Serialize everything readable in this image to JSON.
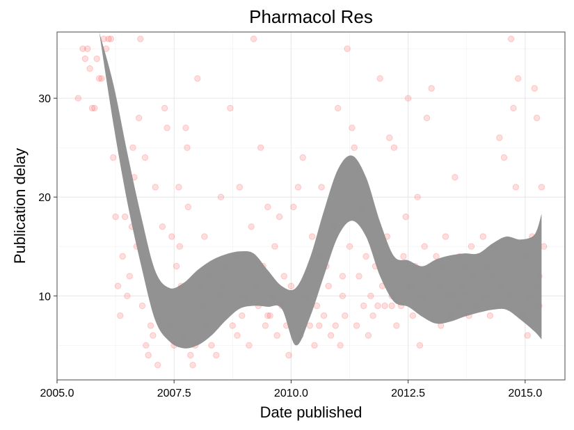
{
  "chart_data": {
    "type": "scatter",
    "title": "Pharmacol Res",
    "xlabel": "Date published",
    "ylabel": "Publication delay",
    "xlim": [
      2005.0,
      2015.85
    ],
    "ylim": [
      1.5,
      36.7
    ],
    "x_ticks": [
      2005.0,
      2007.5,
      2010.0,
      2012.5,
      2015.0
    ],
    "x_tick_labels": [
      "2005.0",
      "2007.5",
      "2010.0",
      "2012.5",
      "2015.0"
    ],
    "y_ticks": [
      10,
      20,
      30
    ],
    "y_tick_labels": [
      "10",
      "20",
      "30"
    ],
    "grid": true,
    "legend": "none",
    "point_color": "#ff2222",
    "point_alpha": 0.15,
    "band_color": "#8c8c8c",
    "series": [
      {
        "values": [
          [
            2005.45,
            30
          ],
          [
            2005.55,
            35
          ],
          [
            2005.6,
            34
          ],
          [
            2005.65,
            35
          ],
          [
            2005.7,
            33
          ],
          [
            2005.75,
            29
          ],
          [
            2005.8,
            29
          ],
          [
            2005.85,
            34
          ],
          [
            2005.9,
            32
          ],
          [
            2005.95,
            32
          ],
          [
            2006.0,
            36
          ],
          [
            2006.05,
            35
          ],
          [
            2006.1,
            36
          ],
          [
            2006.15,
            36
          ],
          [
            2006.2,
            24
          ],
          [
            2006.25,
            18
          ],
          [
            2006.3,
            11
          ],
          [
            2006.35,
            8
          ],
          [
            2006.4,
            14
          ],
          [
            2006.45,
            18
          ],
          [
            2006.5,
            10
          ],
          [
            2006.55,
            12
          ],
          [
            2006.6,
            17
          ],
          [
            2006.62,
            25
          ],
          [
            2006.65,
            22
          ],
          [
            2006.7,
            15
          ],
          [
            2006.75,
            28
          ],
          [
            2006.78,
            36
          ],
          [
            2006.82,
            9
          ],
          [
            2006.88,
            24
          ],
          [
            2006.9,
            5
          ],
          [
            2006.95,
            4
          ],
          [
            2007.0,
            7
          ],
          [
            2007.05,
            6
          ],
          [
            2007.1,
            21
          ],
          [
            2007.15,
            3
          ],
          [
            2007.2,
            8
          ],
          [
            2007.25,
            17
          ],
          [
            2007.3,
            29
          ],
          [
            2007.35,
            27
          ],
          [
            2007.4,
            7
          ],
          [
            2007.45,
            16
          ],
          [
            2007.5,
            5
          ],
          [
            2007.55,
            13
          ],
          [
            2007.6,
            21
          ],
          [
            2007.62,
            15
          ],
          [
            2007.65,
            11
          ],
          [
            2007.7,
            6
          ],
          [
            2007.75,
            27
          ],
          [
            2007.78,
            25
          ],
          [
            2007.8,
            19
          ],
          [
            2007.85,
            4
          ],
          [
            2007.9,
            3
          ],
          [
            2007.95,
            5
          ],
          [
            2008.0,
            32
          ],
          [
            2008.05,
            11
          ],
          [
            2008.1,
            9
          ],
          [
            2008.15,
            16
          ],
          [
            2008.2,
            7
          ],
          [
            2008.25,
            12
          ],
          [
            2008.3,
            5
          ],
          [
            2008.35,
            8
          ],
          [
            2008.4,
            4
          ],
          [
            2008.45,
            10
          ],
          [
            2008.5,
            20
          ],
          [
            2008.55,
            11
          ],
          [
            2008.6,
            13
          ],
          [
            2008.65,
            9
          ],
          [
            2008.7,
            29
          ],
          [
            2008.75,
            7
          ],
          [
            2008.8,
            14
          ],
          [
            2008.85,
            6
          ],
          [
            2008.9,
            21
          ],
          [
            2008.95,
            8
          ],
          [
            2009.0,
            10
          ],
          [
            2009.05,
            12
          ],
          [
            2009.1,
            5
          ],
          [
            2009.15,
            17
          ],
          [
            2009.2,
            36
          ],
          [
            2009.25,
            11
          ],
          [
            2009.3,
            9
          ],
          [
            2009.35,
            25
          ],
          [
            2009.4,
            13
          ],
          [
            2009.45,
            7
          ],
          [
            2009.5,
            19
          ],
          [
            2009.55,
            8
          ],
          [
            2009.6,
            10
          ],
          [
            2009.65,
            15
          ],
          [
            2009.7,
            6
          ],
          [
            2009.75,
            18
          ],
          [
            2009.8,
            9
          ],
          [
            2009.85,
            12
          ],
          [
            2009.9,
            7
          ],
          [
            2009.95,
            4
          ],
          [
            2010.0,
            11
          ],
          [
            2010.05,
            19
          ],
          [
            2010.1,
            8
          ],
          [
            2010.15,
            21
          ],
          [
            2010.2,
            6
          ],
          [
            2010.25,
            24
          ],
          [
            2010.3,
            10
          ],
          [
            2010.35,
            12
          ],
          [
            2010.4,
            7
          ],
          [
            2010.45,
            16
          ],
          [
            2010.5,
            5
          ],
          [
            2010.55,
            9
          ],
          [
            2010.6,
            14
          ],
          [
            2010.65,
            21
          ],
          [
            2010.7,
            8
          ],
          [
            2010.75,
            13
          ],
          [
            2010.8,
            11
          ],
          [
            2010.85,
            6
          ],
          [
            2010.9,
            17
          ],
          [
            2010.95,
            7
          ],
          [
            2011.0,
            29
          ],
          [
            2011.05,
            5
          ],
          [
            2011.1,
            10
          ],
          [
            2011.15,
            8
          ],
          [
            2011.2,
            35
          ],
          [
            2011.25,
            15
          ],
          [
            2011.3,
            27
          ],
          [
            2011.35,
            25
          ],
          [
            2011.4,
            7
          ],
          [
            2011.45,
            12
          ],
          [
            2011.5,
            19
          ],
          [
            2011.55,
            9
          ],
          [
            2011.6,
            14
          ],
          [
            2011.65,
            6
          ],
          [
            2011.7,
            10
          ],
          [
            2011.75,
            8
          ],
          [
            2011.8,
            13
          ],
          [
            2011.85,
            9
          ],
          [
            2011.9,
            32
          ],
          [
            2011.95,
            11
          ],
          [
            2012.0,
            9
          ],
          [
            2012.05,
            16
          ],
          [
            2012.1,
            26
          ],
          [
            2012.15,
            10
          ],
          [
            2012.2,
            25
          ],
          [
            2012.25,
            7
          ],
          [
            2012.3,
            12
          ],
          [
            2012.35,
            9
          ],
          [
            2012.4,
            14
          ],
          [
            2012.45,
            18
          ],
          [
            2012.5,
            30
          ],
          [
            2012.55,
            11
          ],
          [
            2012.6,
            8
          ],
          [
            2012.65,
            13
          ],
          [
            2012.7,
            20
          ],
          [
            2012.75,
            5
          ],
          [
            2012.8,
            10
          ],
          [
            2012.85,
            15
          ],
          [
            2012.9,
            28
          ],
          [
            2012.95,
            12
          ],
          [
            2013.0,
            31
          ],
          [
            2013.05,
            9
          ],
          [
            2013.1,
            14
          ],
          [
            2013.15,
            11
          ],
          [
            2013.2,
            7
          ],
          [
            2013.25,
            13
          ],
          [
            2013.3,
            16
          ],
          [
            2013.35,
            10
          ],
          [
            2013.4,
            8
          ],
          [
            2013.45,
            12
          ],
          [
            2013.5,
            22
          ],
          [
            2013.55,
            9
          ],
          [
            2013.6,
            14
          ],
          [
            2013.65,
            11
          ],
          [
            2013.7,
            13
          ],
          [
            2013.75,
            10
          ],
          [
            2013.8,
            8
          ],
          [
            2013.85,
            15
          ],
          [
            2013.9,
            12
          ],
          [
            2013.95,
            9
          ],
          [
            2014.0,
            14
          ],
          [
            2014.05,
            11
          ],
          [
            2014.1,
            16
          ],
          [
            2014.15,
            10
          ],
          [
            2014.2,
            13
          ],
          [
            2014.25,
            8
          ],
          [
            2014.3,
            12
          ],
          [
            2014.35,
            15
          ],
          [
            2014.4,
            9
          ],
          [
            2014.45,
            26
          ],
          [
            2014.5,
            11
          ],
          [
            2014.55,
            24
          ],
          [
            2014.6,
            14
          ],
          [
            2014.65,
            10
          ],
          [
            2014.7,
            36
          ],
          [
            2014.75,
            29
          ],
          [
            2014.8,
            21
          ],
          [
            2014.85,
            32
          ],
          [
            2014.9,
            12
          ],
          [
            2014.95,
            8
          ],
          [
            2015.0,
            14
          ],
          [
            2015.05,
            6
          ],
          [
            2015.1,
            10
          ],
          [
            2015.15,
            16
          ],
          [
            2015.2,
            31
          ],
          [
            2015.25,
            28
          ],
          [
            2015.3,
            12
          ],
          [
            2015.35,
            21
          ],
          [
            2015.4,
            15
          ],
          [
            2015.3,
            9
          ],
          [
            2015.25,
            11
          ],
          [
            2010.6,
            7
          ],
          [
            2011.1,
            12
          ],
          [
            2012.15,
            9
          ],
          [
            2013.5,
            10
          ],
          [
            2009.5,
            8
          ]
        ]
      }
    ],
    "smooth_band": {
      "x": [
        2005.9,
        2006.2,
        2006.5,
        2006.8,
        2007.1,
        2007.4,
        2007.7,
        2008.0,
        2008.3,
        2008.6,
        2008.9,
        2009.2,
        2009.5,
        2009.8,
        2010.1,
        2010.4,
        2010.7,
        2011.0,
        2011.3,
        2011.6,
        2011.9,
        2012.2,
        2012.5,
        2012.8,
        2013.1,
        2013.4,
        2013.7,
        2014.0,
        2014.3,
        2014.6,
        2014.9,
        2015.2,
        2015.35
      ],
      "upper": [
        36.7,
        31.5,
        24.5,
        18.0,
        12.5,
        10.8,
        11.3,
        12.6,
        13.6,
        14.2,
        14.5,
        14.3,
        12.6,
        11.0,
        10.8,
        13.8,
        18.6,
        22.8,
        24.2,
        22.0,
        17.5,
        14.0,
        13.6,
        13.0,
        13.7,
        14.1,
        14.3,
        14.3,
        15.3,
        16.0,
        15.7,
        16.2,
        18.3
      ],
      "lower": [
        36.7,
        27.5,
        19.5,
        13.0,
        7.5,
        5.4,
        4.7,
        5.0,
        6.0,
        7.5,
        8.7,
        9.0,
        8.9,
        8.7,
        5.0,
        7.8,
        12.0,
        16.0,
        17.6,
        16.0,
        12.0,
        9.4,
        8.9,
        7.9,
        7.2,
        7.4,
        7.9,
        8.3,
        8.6,
        8.6,
        7.6,
        6.4,
        5.6
      ]
    }
  }
}
